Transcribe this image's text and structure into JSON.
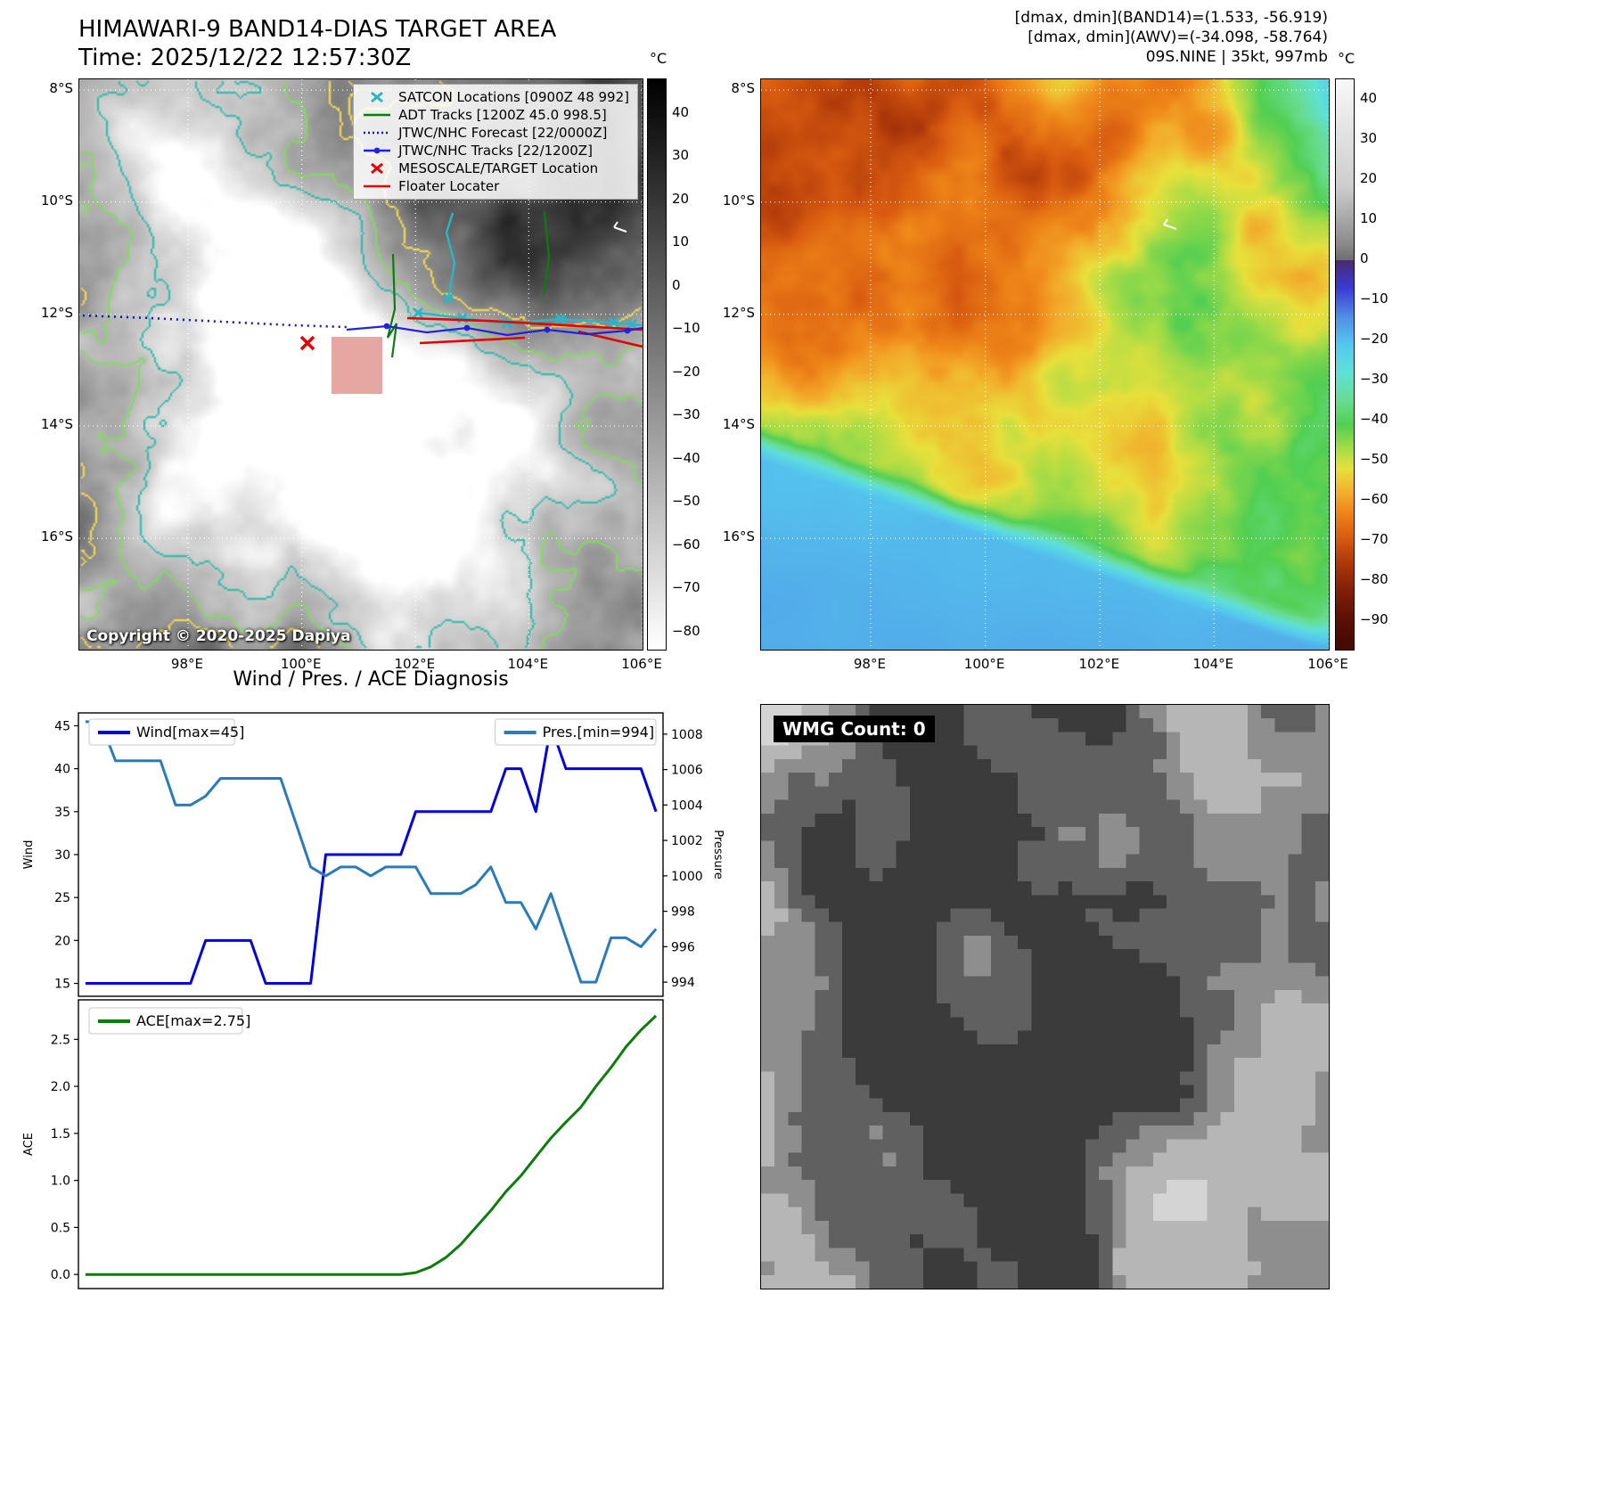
{
  "header": {
    "title_line1": "HIMAWARI-9 BAND14-DIAS TARGET AREA",
    "title_line2": "Time: 2025/12/22 12:57:30Z",
    "right_line1": "[dmax, dmin](BAND14)=(1.533, -56.919)",
    "right_line2": "[dmax, dmin](AWV)=(-34.098, -58.764)",
    "right_line3": "09S.NINE | 35kt, 997mb"
  },
  "band14": {
    "legend_items": [
      {
        "label": "SATCON Locations [0900Z 48 992]",
        "marker": "cross",
        "color": "#29b6c6"
      },
      {
        "label": "ADT Tracks [1200Z 45.0 998.5]",
        "marker": "line",
        "color": "#0f7a0f"
      },
      {
        "label": "JTWC/NHC Forecast [22/0000Z]",
        "marker": "dotted",
        "color": "#1414b8"
      },
      {
        "label": "JTWC/NHC Tracks [22/1200Z]",
        "marker": "line-dot",
        "color": "#2222dd"
      },
      {
        "label": "MESOSCALE/TARGET Location",
        "marker": "cross",
        "color": "#e30000"
      },
      {
        "label": "Floater Locater",
        "marker": "line",
        "color": "#e30000"
      }
    ],
    "copyright": "Copyright © 2020-2025 Dapiya",
    "lat_labels": [
      "8°S",
      "10°S",
      "12°S",
      "14°S",
      "16°S"
    ],
    "lon_labels": [
      "98°E",
      "100°E",
      "102°E",
      "104°E",
      "106°E"
    ],
    "colorbar": {
      "unit": "°C",
      "ticks": [
        "40",
        "30",
        "20",
        "10",
        "0",
        "−10",
        "−20",
        "−30",
        "−40",
        "−50",
        "−60",
        "−70",
        "−80"
      ],
      "stops": [
        [
          48,
          "#000000"
        ],
        [
          -84,
          "#ffffff"
        ]
      ]
    }
  },
  "awv": {
    "lat_labels": [
      "8°S",
      "10°S",
      "12°S",
      "14°S",
      "16°S"
    ],
    "lon_labels": [
      "98°E",
      "100°E",
      "102°E",
      "104°E",
      "106°E"
    ],
    "colorbar": {
      "unit": "°C",
      "ticks": [
        "40",
        "30",
        "20",
        "10",
        "0",
        "−10",
        "−20",
        "−30",
        "−40",
        "−50",
        "−60",
        "−70",
        "−80",
        "−90"
      ],
      "stops": [
        [
          45,
          "#f8f8f8"
        ],
        [
          18,
          "#cccccc"
        ],
        [
          4,
          "#8a8a8a"
        ],
        [
          0.01,
          "#6e6e6e"
        ],
        [
          0,
          "#4a2a70"
        ],
        [
          -7,
          "#3a3ad4"
        ],
        [
          -14,
          "#4f8ce4"
        ],
        [
          -21,
          "#55c8ee"
        ],
        [
          -28,
          "#5fe0d8"
        ],
        [
          -35,
          "#69dc8f"
        ],
        [
          -41,
          "#52cf52"
        ],
        [
          -47,
          "#a8dc46"
        ],
        [
          -52,
          "#e8e03c"
        ],
        [
          -58,
          "#f2ae2c"
        ],
        [
          -63,
          "#ee8418"
        ],
        [
          -69,
          "#d95c10"
        ],
        [
          -75,
          "#b03a0a"
        ],
        [
          -82,
          "#832008"
        ],
        [
          -90,
          "#5a0e04"
        ],
        [
          -95,
          "#470a03"
        ]
      ]
    }
  },
  "chart_data": [
    {
      "type": "line",
      "title": "Wind / Pres. / ACE Diagnosis",
      "x_points": 39,
      "series": [
        {
          "name": "Wind[max=45]",
          "color": "#0000dd",
          "axis": "left",
          "values": [
            15,
            15,
            15,
            15,
            15,
            15,
            15,
            15,
            20,
            20,
            20,
            20,
            15,
            15,
            15,
            15,
            30,
            30,
            30,
            30,
            30,
            30,
            35,
            35,
            35,
            35,
            35,
            35,
            40,
            40,
            35,
            45,
            40,
            40,
            40,
            40,
            40,
            40,
            35
          ]
        },
        {
          "name": "Pres.[min=994]",
          "color": "#2b7bba",
          "axis": "right",
          "values": [
            1008.7,
            1008.7,
            1006.5,
            1006.5,
            1006.5,
            1006.5,
            1004,
            1004,
            1004.5,
            1005.5,
            1005.5,
            1005.5,
            1005.5,
            1005.5,
            1003,
            1000.5,
            1000,
            1000.5,
            1000.5,
            1000,
            1000.5,
            1000.5,
            1000.5,
            999,
            999,
            999,
            999.5,
            1000.5,
            998.5,
            998.5,
            997,
            999,
            996.5,
            994,
            994,
            996.5,
            996.5,
            996,
            997
          ]
        }
      ],
      "left_axis": {
        "label": "Wind",
        "ticks": [
          15,
          20,
          25,
          30,
          35,
          40,
          45
        ],
        "lim": [
          13.5,
          46.5
        ]
      },
      "right_axis": {
        "label": "Pressure",
        "ticks": [
          994,
          996,
          998,
          1000,
          1002,
          1004,
          1006,
          1008
        ],
        "lim": [
          993.2,
          1009.2
        ]
      }
    },
    {
      "type": "line",
      "series": [
        {
          "name": "ACE[max=2.75]",
          "color": "#0c7c0c",
          "axis": "left",
          "values": [
            0,
            0,
            0,
            0,
            0,
            0,
            0,
            0,
            0,
            0,
            0,
            0,
            0,
            0,
            0,
            0,
            0,
            0,
            0,
            0,
            0,
            0,
            0.02,
            0.08,
            0.18,
            0.32,
            0.5,
            0.68,
            0.88,
            1.05,
            1.25,
            1.45,
            1.62,
            1.78,
            2.0,
            2.2,
            2.42,
            2.6,
            2.75
          ]
        }
      ],
      "left_axis": {
        "label": "ACE",
        "ticks": [
          0.0,
          0.5,
          1.0,
          1.5,
          2.0,
          2.5
        ],
        "lim": [
          -0.15,
          2.92
        ],
        "decimals": 1
      }
    }
  ],
  "wmg": {
    "label": "WMG Count: 0"
  }
}
